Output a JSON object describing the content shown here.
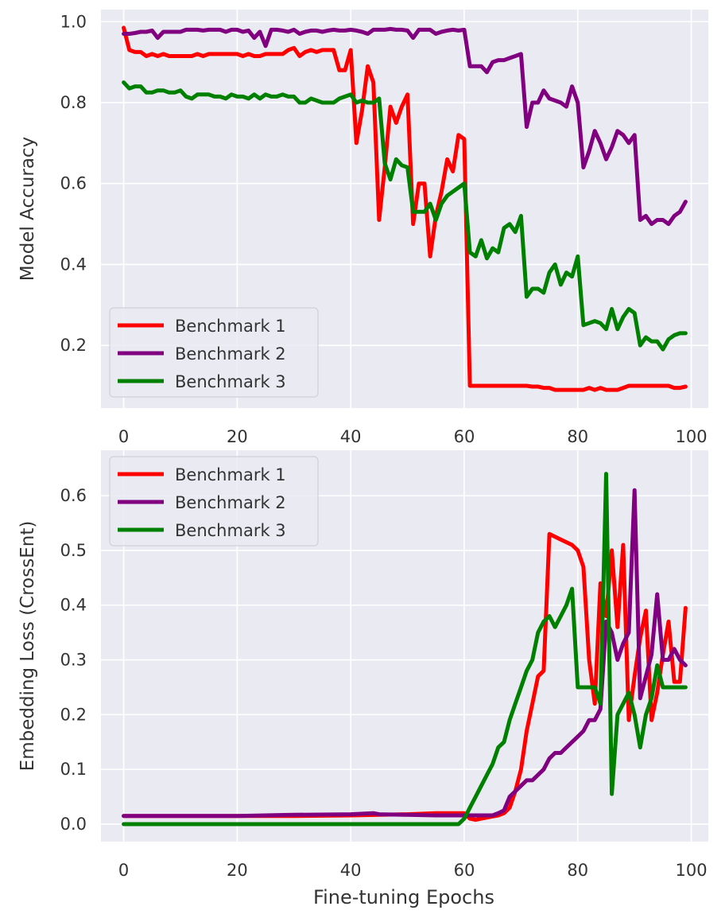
{
  "figure": {
    "xlabel": "Fine-tuning Epochs"
  },
  "chart_data": [
    {
      "type": "line",
      "ylabel": "Model Accuracy",
      "xlabel": "",
      "xlim": [
        -4,
        103
      ],
      "ylim": [
        0.045,
        1.03
      ],
      "xticks": [
        0,
        20,
        40,
        60,
        80,
        100
      ],
      "yticks": [
        0.2,
        0.4,
        0.6,
        0.8,
        1.0
      ],
      "ytick_labels": [
        "0.2",
        "0.4",
        "0.6",
        "0.8",
        "1.0"
      ],
      "grid": true,
      "legend_position": "lower-left",
      "series": [
        {
          "name": "Benchmark 1",
          "color": "#ff0000",
          "x": [
            0,
            1,
            2,
            3,
            4,
            5,
            6,
            7,
            8,
            9,
            10,
            11,
            12,
            13,
            14,
            15,
            16,
            17,
            18,
            19,
            20,
            21,
            22,
            23,
            24,
            25,
            26,
            27,
            28,
            29,
            30,
            31,
            32,
            33,
            34,
            35,
            36,
            37,
            38,
            39,
            40,
            41,
            42,
            43,
            44,
            45,
            46,
            47,
            48,
            49,
            50,
            51,
            52,
            53,
            54,
            55,
            56,
            57,
            58,
            59,
            60,
            61,
            62,
            63,
            64,
            65,
            66,
            67,
            68,
            69,
            70,
            71,
            72,
            73,
            74,
            75,
            76,
            77,
            78,
            79,
            80,
            81,
            82,
            83,
            84,
            85,
            86,
            87,
            88,
            89,
            90,
            91,
            92,
            93,
            94,
            95,
            96,
            97,
            98,
            99
          ],
          "y": [
            0.985,
            0.93,
            0.925,
            0.925,
            0.915,
            0.92,
            0.915,
            0.92,
            0.915,
            0.915,
            0.915,
            0.915,
            0.915,
            0.92,
            0.915,
            0.92,
            0.92,
            0.92,
            0.92,
            0.92,
            0.92,
            0.915,
            0.92,
            0.915,
            0.915,
            0.92,
            0.92,
            0.92,
            0.92,
            0.93,
            0.935,
            0.915,
            0.925,
            0.93,
            0.925,
            0.93,
            0.93,
            0.93,
            0.88,
            0.88,
            0.93,
            0.7,
            0.78,
            0.89,
            0.85,
            0.51,
            0.64,
            0.79,
            0.75,
            0.79,
            0.82,
            0.5,
            0.6,
            0.6,
            0.42,
            0.52,
            0.58,
            0.66,
            0.63,
            0.72,
            0.71,
            0.1,
            0.1,
            0.1,
            0.1,
            0.1,
            0.1,
            0.1,
            0.1,
            0.1,
            0.1,
            0.1,
            0.098,
            0.098,
            0.095,
            0.095,
            0.09,
            0.09,
            0.09,
            0.09,
            0.09,
            0.09,
            0.095,
            0.09,
            0.095,
            0.09,
            0.09,
            0.09,
            0.095,
            0.1,
            0.1,
            0.1,
            0.1,
            0.1,
            0.1,
            0.1,
            0.1,
            0.095,
            0.095,
            0.098
          ]
        },
        {
          "name": "Benchmark 2",
          "color": "#800080",
          "x": [
            0,
            1,
            2,
            3,
            4,
            5,
            6,
            7,
            8,
            9,
            10,
            11,
            12,
            13,
            14,
            15,
            16,
            17,
            18,
            19,
            20,
            21,
            22,
            23,
            24,
            25,
            26,
            27,
            28,
            29,
            30,
            31,
            32,
            33,
            34,
            35,
            36,
            37,
            38,
            39,
            40,
            41,
            42,
            43,
            44,
            45,
            46,
            47,
            48,
            49,
            50,
            51,
            52,
            53,
            54,
            55,
            56,
            57,
            58,
            59,
            60,
            61,
            62,
            63,
            64,
            65,
            66,
            67,
            68,
            69,
            70,
            71,
            72,
            73,
            74,
            75,
            76,
            77,
            78,
            79,
            80,
            81,
            82,
            83,
            84,
            85,
            86,
            87,
            88,
            89,
            90,
            91,
            92,
            93,
            94,
            95,
            96,
            97,
            98,
            99
          ],
          "y": [
            0.97,
            0.97,
            0.972,
            0.975,
            0.975,
            0.978,
            0.96,
            0.975,
            0.975,
            0.975,
            0.975,
            0.98,
            0.98,
            0.98,
            0.978,
            0.98,
            0.98,
            0.98,
            0.975,
            0.98,
            0.98,
            0.975,
            0.978,
            0.96,
            0.975,
            0.94,
            0.98,
            0.98,
            0.978,
            0.975,
            0.98,
            0.97,
            0.975,
            0.978,
            0.978,
            0.975,
            0.978,
            0.98,
            0.978,
            0.978,
            0.98,
            0.978,
            0.975,
            0.97,
            0.98,
            0.98,
            0.98,
            0.982,
            0.98,
            0.98,
            0.978,
            0.96,
            0.98,
            0.98,
            0.98,
            0.97,
            0.975,
            0.978,
            0.98,
            0.978,
            0.98,
            0.89,
            0.89,
            0.89,
            0.875,
            0.9,
            0.905,
            0.905,
            0.91,
            0.915,
            0.92,
            0.74,
            0.8,
            0.8,
            0.83,
            0.81,
            0.805,
            0.8,
            0.79,
            0.84,
            0.8,
            0.64,
            0.68,
            0.73,
            0.7,
            0.66,
            0.69,
            0.73,
            0.72,
            0.7,
            0.72,
            0.51,
            0.52,
            0.5,
            0.51,
            0.51,
            0.5,
            0.52,
            0.53,
            0.555
          ]
        },
        {
          "name": "Benchmark 3",
          "color": "#008000",
          "x": [
            0,
            1,
            2,
            3,
            4,
            5,
            6,
            7,
            8,
            9,
            10,
            11,
            12,
            13,
            14,
            15,
            16,
            17,
            18,
            19,
            20,
            21,
            22,
            23,
            24,
            25,
            26,
            27,
            28,
            29,
            30,
            31,
            32,
            33,
            34,
            35,
            36,
            37,
            38,
            39,
            40,
            41,
            42,
            43,
            44,
            45,
            46,
            47,
            48,
            49,
            50,
            51,
            52,
            53,
            54,
            55,
            56,
            57,
            58,
            59,
            60,
            61,
            62,
            63,
            64,
            65,
            66,
            67,
            68,
            69,
            70,
            71,
            72,
            73,
            74,
            75,
            76,
            77,
            78,
            79,
            80,
            81,
            82,
            83,
            84,
            85,
            86,
            87,
            88,
            89,
            90,
            91,
            92,
            93,
            94,
            95,
            96,
            97,
            98,
            99
          ],
          "y": [
            0.85,
            0.835,
            0.84,
            0.84,
            0.825,
            0.825,
            0.83,
            0.83,
            0.825,
            0.825,
            0.83,
            0.815,
            0.81,
            0.82,
            0.82,
            0.82,
            0.815,
            0.815,
            0.81,
            0.82,
            0.815,
            0.815,
            0.81,
            0.82,
            0.81,
            0.82,
            0.815,
            0.815,
            0.82,
            0.815,
            0.815,
            0.8,
            0.8,
            0.81,
            0.805,
            0.8,
            0.8,
            0.8,
            0.81,
            0.815,
            0.82,
            0.8,
            0.805,
            0.8,
            0.8,
            0.81,
            0.65,
            0.61,
            0.66,
            0.645,
            0.64,
            0.53,
            0.53,
            0.53,
            0.55,
            0.51,
            0.55,
            0.57,
            0.58,
            0.59,
            0.6,
            0.43,
            0.42,
            0.46,
            0.415,
            0.44,
            0.43,
            0.49,
            0.5,
            0.48,
            0.52,
            0.32,
            0.34,
            0.34,
            0.33,
            0.38,
            0.4,
            0.35,
            0.38,
            0.37,
            0.42,
            0.25,
            0.255,
            0.26,
            0.255,
            0.24,
            0.29,
            0.24,
            0.27,
            0.29,
            0.28,
            0.2,
            0.22,
            0.21,
            0.21,
            0.19,
            0.215,
            0.225,
            0.23,
            0.23
          ]
        }
      ]
    },
    {
      "type": "line",
      "ylabel": "Embedding Loss (CrossEnt)",
      "xlabel": "Fine-tuning Epochs",
      "xlim": [
        -4,
        103
      ],
      "ylim": [
        -0.032,
        0.683
      ],
      "xticks": [
        0,
        20,
        40,
        60,
        80,
        100
      ],
      "yticks": [
        0.0,
        0.1,
        0.2,
        0.3,
        0.4,
        0.5,
        0.6
      ],
      "ytick_labels": [
        "0.0",
        "0.1",
        "0.2",
        "0.3",
        "0.4",
        "0.5",
        "0.6"
      ],
      "grid": true,
      "legend_position": "upper-left",
      "series": [
        {
          "name": "Benchmark 1",
          "color": "#ff0000",
          "x": [
            0,
            10,
            20,
            30,
            40,
            45,
            50,
            55,
            60,
            61,
            62,
            63,
            64,
            65,
            66,
            67,
            68,
            69,
            70,
            71,
            72,
            73,
            74,
            75,
            76,
            77,
            78,
            79,
            80,
            81,
            82,
            83,
            84,
            85,
            86,
            87,
            88,
            89,
            90,
            91,
            92,
            93,
            94,
            95,
            96,
            97,
            98,
            99
          ],
          "y": [
            0.015,
            0.015,
            0.015,
            0.015,
            0.016,
            0.017,
            0.018,
            0.02,
            0.02,
            0.01,
            0.008,
            0.01,
            0.012,
            0.014,
            0.016,
            0.02,
            0.03,
            0.06,
            0.1,
            0.17,
            0.22,
            0.27,
            0.28,
            0.53,
            0.525,
            0.52,
            0.515,
            0.51,
            0.5,
            0.47,
            0.3,
            0.22,
            0.44,
            0.38,
            0.5,
            0.36,
            0.51,
            0.19,
            0.27,
            0.34,
            0.39,
            0.19,
            0.24,
            0.31,
            0.37,
            0.26,
            0.26,
            0.395
          ]
        },
        {
          "name": "Benchmark 2",
          "color": "#800080",
          "x": [
            0,
            10,
            20,
            30,
            40,
            44,
            45,
            50,
            55,
            60,
            61,
            62,
            63,
            64,
            65,
            66,
            67,
            68,
            69,
            70,
            71,
            72,
            73,
            74,
            75,
            76,
            77,
            78,
            79,
            80,
            81,
            82,
            83,
            84,
            85,
            86,
            87,
            88,
            89,
            90,
            91,
            92,
            93,
            94,
            95,
            96,
            97,
            98,
            99
          ],
          "y": [
            0.015,
            0.015,
            0.015,
            0.017,
            0.018,
            0.02,
            0.018,
            0.017,
            0.016,
            0.016,
            0.016,
            0.016,
            0.016,
            0.016,
            0.016,
            0.02,
            0.025,
            0.05,
            0.06,
            0.07,
            0.08,
            0.08,
            0.09,
            0.1,
            0.12,
            0.13,
            0.13,
            0.14,
            0.15,
            0.16,
            0.17,
            0.19,
            0.19,
            0.21,
            0.37,
            0.35,
            0.3,
            0.33,
            0.35,
            0.61,
            0.23,
            0.27,
            0.31,
            0.42,
            0.3,
            0.3,
            0.32,
            0.3,
            0.29
          ]
        },
        {
          "name": "Benchmark 3",
          "color": "#008000",
          "x": [
            0,
            10,
            20,
            30,
            40,
            50,
            55,
            59,
            60,
            61,
            62,
            63,
            64,
            65,
            66,
            67,
            68,
            69,
            70,
            71,
            72,
            73,
            74,
            75,
            76,
            77,
            78,
            79,
            80,
            81,
            82,
            83,
            84,
            85,
            86,
            87,
            88,
            89,
            90,
            91,
            92,
            93,
            94,
            95,
            96,
            97,
            98,
            99
          ],
          "y": [
            0,
            0,
            0,
            0,
            0,
            0,
            0,
            0,
            0.01,
            0.03,
            0.05,
            0.07,
            0.09,
            0.11,
            0.14,
            0.15,
            0.19,
            0.22,
            0.25,
            0.28,
            0.3,
            0.35,
            0.37,
            0.38,
            0.36,
            0.38,
            0.4,
            0.43,
            0.25,
            0.25,
            0.25,
            0.25,
            0.22,
            0.64,
            0.055,
            0.2,
            0.22,
            0.24,
            0.2,
            0.14,
            0.2,
            0.23,
            0.29,
            0.25,
            0.25,
            0.25,
            0.25,
            0.25
          ]
        }
      ]
    }
  ]
}
